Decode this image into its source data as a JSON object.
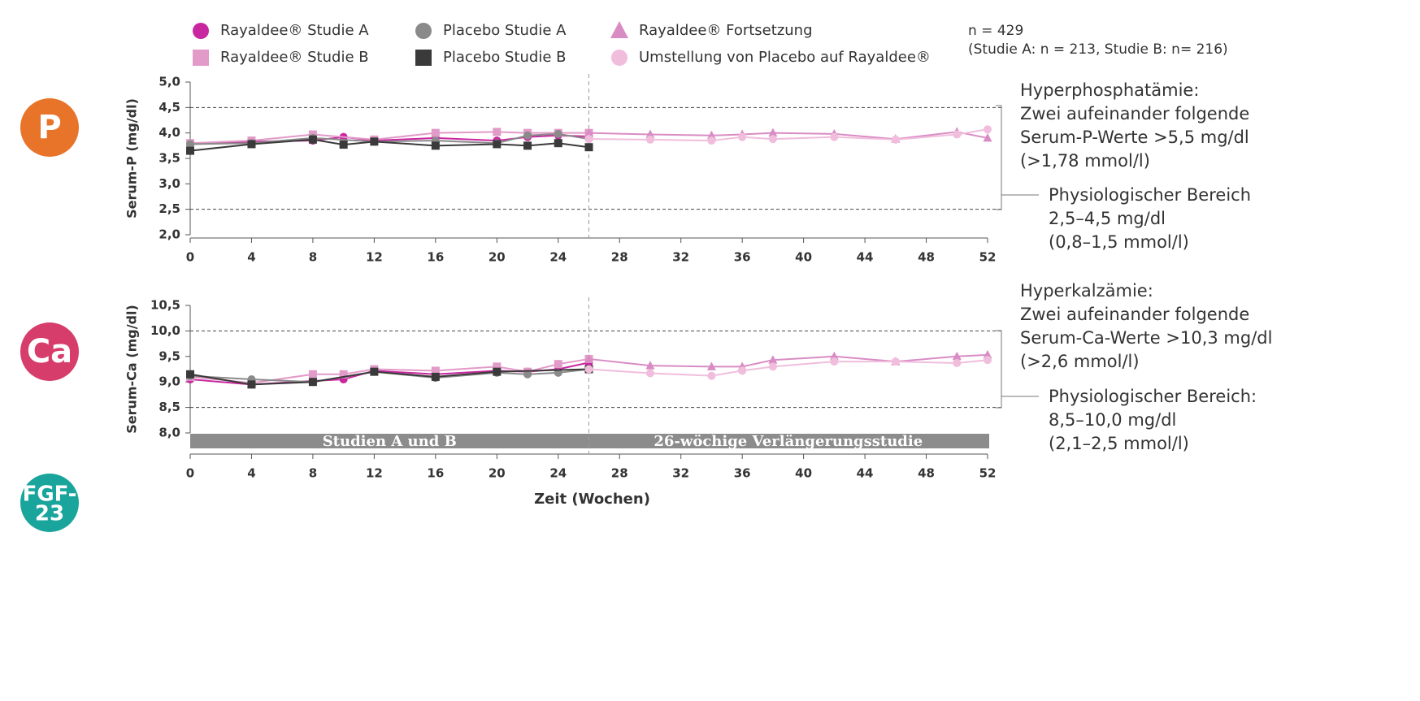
{
  "sample_note": [
    "n = 429",
    "(Studie A: n = 213, Studie B: n= 216)"
  ],
  "icons": [
    [
      "P"
    ],
    [
      "Ca"
    ],
    [
      "FGF-",
      "23"
    ]
  ],
  "chart_data": [
    {
      "type": "line",
      "ylabel": "Serum-P (mg/dl)",
      "xlim": [
        0,
        52
      ],
      "xticks": [
        0,
        4,
        8,
        12,
        16,
        20,
        24,
        28,
        32,
        36,
        40,
        44,
        48,
        52
      ],
      "ylim": [
        2.0,
        5.0
      ],
      "yticks": [
        {
          "value": 2.0,
          "label": "2,0"
        },
        {
          "value": 2.5,
          "label": "2,5"
        },
        {
          "value": 3.0,
          "label": "3,0"
        },
        {
          "value": 3.5,
          "label": "3,5"
        },
        {
          "value": 4.0,
          "label": "4,0"
        },
        {
          "value": 4.5,
          "label": "4,5"
        },
        {
          "value": 5.0,
          "label": "5,0"
        }
      ],
      "reference_lines": [
        2.5,
        4.5
      ],
      "divider_x": 26,
      "upper_note": [
        "Hyperphosphatämie:",
        "Zwei aufeinander folgende",
        "Serum-P-Werte >5,5 mg/dl",
        "(>1,78 mmol/l)"
      ],
      "range_note": [
        "Physiologischer Bereich",
        "2,5–4,5 mg/dl",
        "(0,8–1,5 mmol/l)"
      ],
      "series": [
        {
          "name": "Rayaldee® Studie A",
          "color": "#c9279f",
          "marker": "circle",
          "x": [
            0,
            4,
            8,
            10,
            12,
            16,
            20,
            22,
            24,
            26
          ],
          "values": [
            3.78,
            3.83,
            3.85,
            3.92,
            3.85,
            3.9,
            3.85,
            3.92,
            3.95,
            3.93
          ]
        },
        {
          "name": "Rayaldee® Studie B",
          "color": "#e29ac8",
          "marker": "square",
          "x": [
            0,
            4,
            8,
            12,
            16,
            20,
            22,
            24,
            26
          ],
          "values": [
            3.8,
            3.85,
            3.97,
            3.87,
            4.0,
            4.02,
            4.0,
            4.0,
            4.0
          ]
        },
        {
          "name": "Placebo Studie A",
          "color": "#8a8a8a",
          "marker": "circle",
          "x": [
            0,
            4,
            8,
            12,
            16,
            20,
            22,
            24,
            26
          ],
          "values": [
            3.78,
            3.8,
            3.9,
            3.83,
            3.85,
            3.8,
            3.95,
            3.98,
            3.88
          ]
        },
        {
          "name": "Placebo Studie B",
          "color": "#3a3a3a",
          "marker": "square",
          "x": [
            0,
            4,
            8,
            10,
            12,
            16,
            20,
            22,
            24,
            26
          ],
          "values": [
            3.65,
            3.78,
            3.87,
            3.77,
            3.83,
            3.75,
            3.78,
            3.75,
            3.8,
            3.72
          ]
        },
        {
          "name": "Rayaldee® Fortsetzung",
          "color": "#d98cc4",
          "marker": "triangle",
          "x": [
            26,
            30,
            34,
            36,
            38,
            42,
            46,
            50,
            52
          ],
          "values": [
            4.0,
            3.97,
            3.95,
            3.97,
            4.0,
            3.98,
            3.88,
            4.02,
            3.9
          ]
        },
        {
          "name": "Umstellung von Placebo auf Rayaldee®",
          "color": "#f0bedc",
          "marker": "circle",
          "x": [
            26,
            30,
            34,
            36,
            38,
            42,
            46,
            50,
            52
          ],
          "values": [
            3.88,
            3.87,
            3.85,
            3.92,
            3.88,
            3.92,
            3.87,
            3.97,
            4.07
          ]
        }
      ]
    },
    {
      "type": "line",
      "ylabel": "Serum-Ca (mg/dl)",
      "xlabel": "Zeit (Wochen)",
      "xlim": [
        0,
        52
      ],
      "xticks": [
        0,
        4,
        8,
        12,
        16,
        20,
        24,
        28,
        32,
        36,
        40,
        44,
        48,
        52
      ],
      "ylim": [
        8.0,
        10.5
      ],
      "yticks": [
        {
          "value": 8.0,
          "label": "8,0"
        },
        {
          "value": 8.5,
          "label": "8,5"
        },
        {
          "value": 9.0,
          "label": "9,0"
        },
        {
          "value": 9.5,
          "label": "9,5"
        },
        {
          "value": 10.0,
          "label": "10,0"
        },
        {
          "value": 10.5,
          "label": "10,5"
        }
      ],
      "reference_lines": [
        8.5,
        10.0
      ],
      "divider_x": 26,
      "bands": [
        {
          "label": "Studien A und B",
          "x": [
            0,
            26
          ]
        },
        {
          "label": "26-wöchige Verlängerungsstudie",
          "x": [
            26,
            52
          ]
        }
      ],
      "upper_note": [
        "Hyperkalzämie:",
        "Zwei aufeinander folgende",
        "Serum-Ca-Werte >10,3 mg/dl",
        "(>2,6 mmol/l)"
      ],
      "range_note": [
        "Physiologischer Bereich:",
        "8,5–10,0 mg/dl",
        "(2,1–2,5 mmol/l)"
      ],
      "series": [
        {
          "color": "#c9279f",
          "marker": "circle",
          "x": [
            0,
            4,
            8,
            10,
            12,
            16,
            20,
            22,
            24,
            26
          ],
          "values": [
            9.05,
            8.95,
            9.02,
            9.05,
            9.22,
            9.15,
            9.22,
            9.2,
            9.25,
            9.38
          ]
        },
        {
          "color": "#e29ac8",
          "marker": "square",
          "x": [
            0,
            4,
            8,
            10,
            12,
            16,
            20,
            22,
            24,
            26
          ],
          "values": [
            9.1,
            8.98,
            9.15,
            9.15,
            9.25,
            9.22,
            9.3,
            9.2,
            9.35,
            9.45
          ]
        },
        {
          "color": "#8a8a8a",
          "marker": "circle",
          "x": [
            0,
            4,
            8,
            12,
            16,
            20,
            22,
            24,
            26
          ],
          "values": [
            9.12,
            9.05,
            9.0,
            9.2,
            9.08,
            9.18,
            9.15,
            9.18,
            9.25
          ]
        },
        {
          "color": "#3a3a3a",
          "marker": "square",
          "x": [
            0,
            4,
            8,
            12,
            16,
            20,
            26
          ],
          "values": [
            9.15,
            8.95,
            9.0,
            9.2,
            9.1,
            9.2,
            9.25
          ]
        },
        {
          "color": "#d98cc4",
          "marker": "triangle",
          "x": [
            26,
            30,
            34,
            36,
            38,
            42,
            46,
            50,
            52
          ],
          "values": [
            9.45,
            9.32,
            9.3,
            9.3,
            9.43,
            9.5,
            9.4,
            9.5,
            9.53
          ]
        },
        {
          "color": "#f0bedc",
          "marker": "circle",
          "x": [
            26,
            30,
            34,
            36,
            38,
            42,
            46,
            50,
            52
          ],
          "values": [
            9.25,
            9.17,
            9.12,
            9.22,
            9.3,
            9.4,
            9.4,
            9.37,
            9.43
          ]
        }
      ]
    }
  ]
}
